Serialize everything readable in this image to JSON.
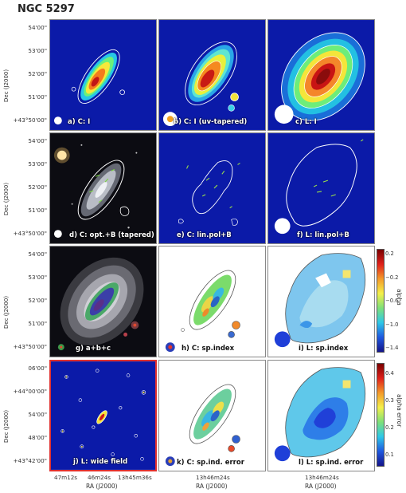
{
  "title": "NGC 5297",
  "panels": {
    "a": "a) C: I",
    "b": "b) C: I (uv-tapered)",
    "c": "c) L: I",
    "d": "d) C: opt.+B (tapered)",
    "e": "e) C: lin.pol+B",
    "f": "f) L: lin.pol+B",
    "g": "g)  a+b+c",
    "h": "h) C: sp.index",
    "i": "i) L: sp.index",
    "j": "j) L: wide field",
    "k": "k) C: sp.ind. error",
    "l": "l) L: sp.ind. error"
  },
  "axes": {
    "ylabel": "Dec (J2000)",
    "xlabel": "RA (J2000)",
    "dec_ticks": [
      "54'00\"",
      "53'00\"",
      "52'00\"",
      "51'00\"",
      "+43°50'00\""
    ],
    "dec_ticks_wide": [
      "06'00\"",
      "+44°00'00\"",
      "54'00\"",
      "48'00\"",
      "+43°42'00\""
    ],
    "ra_ticks_wide": [
      "47m12s",
      "46m24s",
      "13h45m36s"
    ],
    "ra_tick_center": "13h46m24s"
  },
  "colorbars": {
    "alpha": {
      "label": "alpha",
      "ticks": [
        "0.2",
        "−0.2",
        "−0.6",
        "−1.0",
        "−1.4"
      ]
    },
    "alpha_error": {
      "label": "alpha error",
      "ticks": [
        "0.4",
        "0.3",
        "0.2",
        "0.1"
      ]
    }
  }
}
